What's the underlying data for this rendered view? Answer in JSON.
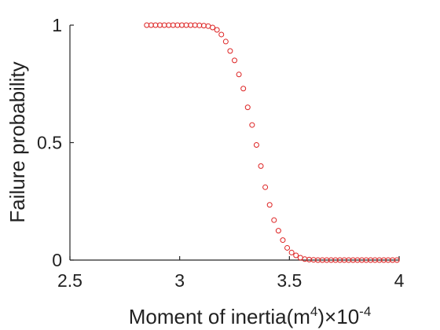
{
  "chart_data": {
    "type": "scatter",
    "title": "",
    "xlabel": "Moment of inertia(m",
    "xlabel_superscript": "4",
    "xlabel_suffix": ")",
    "x_multiplier": "×10",
    "x_multiplier_exponent": "-4",
    "ylabel": "Failure probability",
    "xlim": [
      2.5,
      4
    ],
    "ylim": [
      0,
      1
    ],
    "xticks": [
      2.5,
      3,
      3.5,
      4
    ],
    "xtick_labels": [
      "2.5",
      "3",
      "3.5",
      "4"
    ],
    "yticks": [
      0,
      0.5,
      1
    ],
    "ytick_labels": [
      "0",
      "0.5",
      "1"
    ],
    "grid": false,
    "marker": "circle-open",
    "marker_color": "#dd2222",
    "axis_color": "#262626",
    "series": [
      {
        "x": [
          2.85,
          2.87,
          2.89,
          2.91,
          2.93,
          2.95,
          2.97,
          2.99,
          3.01,
          3.03,
          3.05,
          3.07,
          3.09,
          3.11,
          3.13,
          3.15,
          3.17,
          3.19,
          3.21,
          3.23,
          3.25,
          3.27,
          3.29,
          3.31,
          3.33,
          3.35,
          3.37,
          3.39,
          3.41,
          3.43,
          3.45,
          3.47,
          3.49,
          3.51,
          3.53,
          3.55,
          3.57,
          3.59,
          3.61,
          3.63,
          3.65,
          3.67,
          3.69,
          3.71,
          3.73,
          3.75,
          3.77,
          3.79,
          3.81,
          3.83,
          3.85,
          3.87,
          3.89,
          3.91,
          3.93,
          3.95,
          3.97,
          3.99
        ],
        "y": [
          1.0,
          1.0,
          1.0,
          1.0,
          1.0,
          1.0,
          1.0,
          1.0,
          1.0,
          1.0,
          1.0,
          1.0,
          0.999,
          0.998,
          0.996,
          0.99,
          0.98,
          0.96,
          0.93,
          0.89,
          0.85,
          0.79,
          0.73,
          0.65,
          0.575,
          0.49,
          0.4,
          0.31,
          0.235,
          0.17,
          0.125,
          0.085,
          0.052,
          0.032,
          0.02,
          0.01,
          0.004,
          0.002,
          0.001,
          0.0,
          0.0,
          0.0,
          0.0,
          0.0,
          0.0,
          0.0,
          0.0,
          0.0,
          0.0,
          0.0,
          0.0,
          0.0,
          0.0,
          0.0,
          0.0,
          0.0,
          0.0,
          0.0
        ]
      }
    ]
  }
}
